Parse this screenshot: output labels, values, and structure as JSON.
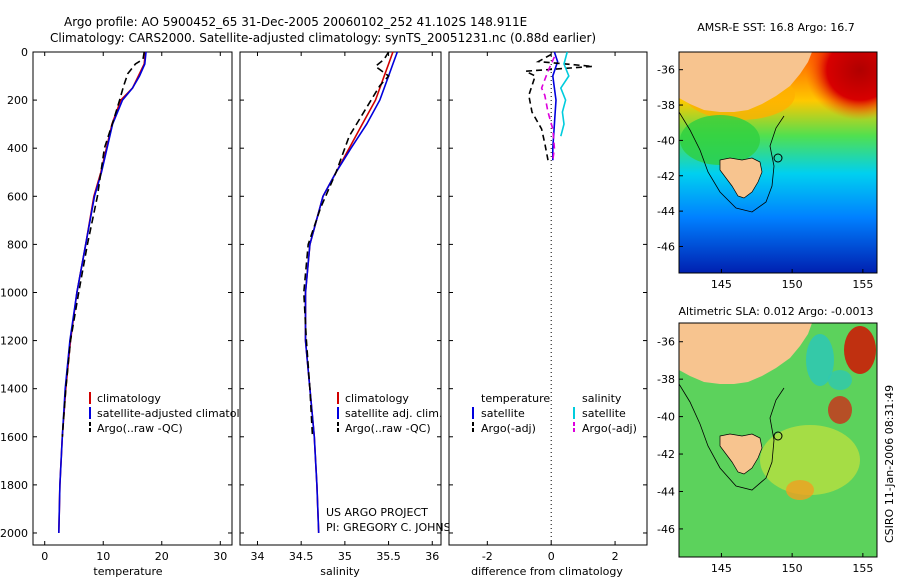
{
  "header": {
    "line1": "Argo profile: AO 5900452_65 31-Dec-2005 20060102_252 41.102S 148.911E",
    "line2": "Climatology: CARS2000. Satellite-adjusted climatology: synTS_20051231.nc (0.88d earlier)"
  },
  "colors": {
    "climatology": "#d00000",
    "satellite": "#0000dd",
    "argo": "#000000",
    "sal_satellite": "#00ccdd",
    "sal_argo": "#dd00dd",
    "land": "#f7c48f"
  },
  "chart_data": [
    {
      "type": "line",
      "id": "temperature-profile",
      "xlabel": "temperature",
      "xlim": [
        -2,
        32
      ],
      "ylim": [
        0,
        2050
      ],
      "y_reversed": true,
      "xticks": [
        0,
        10,
        20,
        30
      ],
      "yticks": [
        0,
        200,
        400,
        600,
        800,
        1000,
        1200,
        1400,
        1600,
        1800,
        2000
      ],
      "legend": [
        "climatology",
        "satellite-adjusted climatology",
        "Argo(..raw -QC)"
      ],
      "series": [
        {
          "name": "climatology",
          "color": "#d00000",
          "dash": "",
          "x": [
            17.2,
            17.0,
            16.0,
            15.0,
            13.0,
            11.5,
            9.6,
            8.4,
            7.0,
            5.5,
            4.4,
            3.6,
            3.0,
            2.6,
            2.4
          ],
          "y": [
            0,
            50,
            100,
            150,
            200,
            300,
            500,
            600,
            800,
            1000,
            1200,
            1400,
            1600,
            1800,
            2000
          ]
        },
        {
          "name": "satellite-adjusted climatology",
          "color": "#0000dd",
          "dash": "",
          "x": [
            17.3,
            17.1,
            16.2,
            15.0,
            13.3,
            11.6,
            9.7,
            8.5,
            7.0,
            5.5,
            4.3,
            3.5,
            3.0,
            2.6,
            2.4
          ],
          "y": [
            0,
            50,
            100,
            150,
            200,
            300,
            500,
            600,
            800,
            1000,
            1200,
            1400,
            1600,
            1800,
            2000
          ]
        },
        {
          "name": "Argo(..raw -QC)",
          "color": "#000000",
          "dash": "7,4",
          "x": [
            17.0,
            16.8,
            15.5,
            14.2,
            13.5,
            12.8,
            11.8,
            10.2,
            9.0,
            7.3,
            5.8,
            4.4,
            3.6,
            3.0
          ],
          "y": [
            0,
            30,
            50,
            90,
            140,
            200,
            280,
            400,
            600,
            800,
            1000,
            1200,
            1400,
            1600
          ]
        }
      ]
    },
    {
      "type": "line",
      "id": "salinity-profile",
      "xlabel": "salinity",
      "xlim": [
        33.8,
        36.1
      ],
      "ylim": [
        0,
        2050
      ],
      "y_reversed": true,
      "xticks": [
        34,
        34.5,
        35,
        35.5,
        36
      ],
      "legend": [
        "climatology",
        "satellite adj. clim.",
        "Argo(..raw -QC)"
      ],
      "annotation": [
        "US ARGO PROJECT",
        "PI: GREGORY C. JOHNSON"
      ],
      "series": [
        {
          "name": "climatology",
          "color": "#d00000",
          "dash": "",
          "x": [
            35.55,
            35.5,
            35.45,
            35.35,
            35.2,
            35.05,
            34.9,
            34.75,
            34.6,
            34.55,
            34.55,
            34.6,
            34.65,
            34.68,
            34.7
          ],
          "y": [
            0,
            50,
            100,
            200,
            300,
            400,
            500,
            600,
            800,
            1000,
            1200,
            1400,
            1600,
            1800,
            2000
          ]
        },
        {
          "name": "satellite adj. clim.",
          "color": "#0000dd",
          "dash": "",
          "x": [
            35.6,
            35.55,
            35.5,
            35.4,
            35.25,
            35.07,
            34.9,
            34.75,
            34.6,
            34.55,
            34.55,
            34.6,
            34.65,
            34.68,
            34.7
          ],
          "y": [
            0,
            50,
            100,
            200,
            300,
            400,
            500,
            600,
            800,
            1000,
            1200,
            1400,
            1600,
            1800,
            2000
          ]
        },
        {
          "name": "Argo(..raw -QC)",
          "color": "#000000",
          "dash": "7,4",
          "x": [
            35.5,
            35.45,
            35.35,
            35.5,
            35.4,
            35.3,
            35.05,
            34.9,
            34.72,
            34.58,
            34.53,
            34.56,
            34.6,
            34.63
          ],
          "y": [
            0,
            30,
            60,
            100,
            140,
            200,
            350,
            500,
            650,
            800,
            1000,
            1200,
            1400,
            1600
          ]
        }
      ]
    },
    {
      "type": "line",
      "id": "difference-profile",
      "xlabel": "difference from climatology",
      "xlim": [
        -3.2,
        3.0
      ],
      "ylim": [
        0,
        2050
      ],
      "y_reversed": true,
      "xticks": [
        -2,
        0,
        2
      ],
      "legend": [
        "temperature",
        "satellite",
        "Argo(-adj)",
        "salinity",
        "satellite",
        "Argo(-adj)"
      ],
      "series": [
        {
          "name": "temperature satellite",
          "color": "#0000dd",
          "dash": "",
          "x": [
            0.1,
            0.2,
            0.05,
            0.1,
            0.15,
            0.1,
            0.05,
            0.05
          ],
          "y": [
            0,
            40,
            100,
            150,
            200,
            300,
            400,
            450
          ]
        },
        {
          "name": "temperature Argo(-adj)",
          "color": "#000000",
          "dash": "6,4",
          "x": [
            0,
            -0.4,
            1.3,
            -0.8,
            -0.5,
            -0.7,
            -0.6,
            -0.3,
            -0.2,
            -0.1
          ],
          "y": [
            10,
            40,
            60,
            80,
            100,
            180,
            250,
            320,
            380,
            450
          ]
        },
        {
          "name": "salinity satellite",
          "color": "#00ccdd",
          "dash": "",
          "x": [
            0.5,
            0.4,
            0.55,
            0.3,
            0.45,
            0.35,
            0.4,
            0.3
          ],
          "y": [
            0,
            50,
            100,
            150,
            200,
            250,
            300,
            350
          ]
        },
        {
          "name": "salinity Argo(-adj)",
          "color": "#dd00dd",
          "dash": "6,4",
          "x": [
            0.1,
            -0.1,
            -0.3,
            -0.2,
            -0.1,
            0.05,
            0.1,
            0.05
          ],
          "y": [
            20,
            80,
            150,
            180,
            250,
            320,
            400,
            450
          ]
        }
      ]
    },
    {
      "type": "heatmap",
      "id": "sst-map",
      "title": "AMSR-E SST: 16.8 Argo: 16.7",
      "xlim": [
        142,
        156
      ],
      "ylim": [
        -47.5,
        -35
      ],
      "xticks": [
        145,
        150,
        155
      ],
      "yticks": [
        -36,
        -38,
        -40,
        -42,
        -44,
        -46
      ],
      "marker": {
        "lon": 148.911,
        "lat": -41.102
      }
    },
    {
      "type": "heatmap",
      "id": "sla-map",
      "title": "Altimetric SLA: 0.012 Argo: -0.0013",
      "xlim": [
        142,
        156
      ],
      "ylim": [
        -47.5,
        -35
      ],
      "xticks": [
        145,
        150,
        155
      ],
      "yticks": [
        -36,
        -38,
        -40,
        -42,
        -44,
        -46
      ],
      "marker": {
        "lon": 148.911,
        "lat": -41.102
      }
    }
  ],
  "footer": {
    "credit": "CSIRO 11-Jan-2006 08:31:49"
  }
}
